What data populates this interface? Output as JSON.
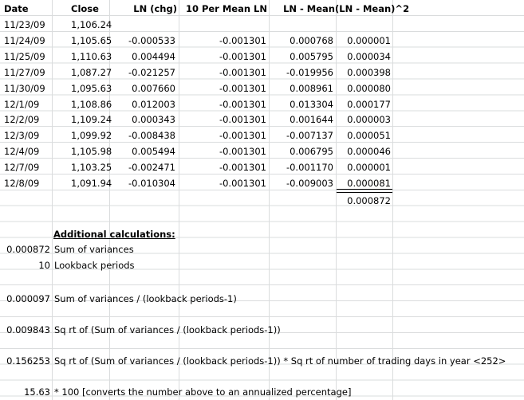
{
  "headers": [
    "Date",
    "Close",
    "LN (chg)",
    "10 Per Mean LN",
    "LN - Mean",
    "(LN - Mean)^2"
  ],
  "rows": [
    [
      "11/23/09",
      "1,106.24",
      "",
      "",
      "",
      ""
    ],
    [
      "11/24/09",
      "1,105.65",
      "-0.000533",
      "-0.001301",
      "0.000768",
      "0.000001"
    ],
    [
      "11/25/09",
      "1,110.63",
      "0.004494",
      "-0.001301",
      "0.005795",
      "0.000034"
    ],
    [
      "11/27/09",
      "1,087.27",
      "-0.021257",
      "-0.001301",
      "-0.019956",
      "0.000398"
    ],
    [
      "11/30/09",
      "1,095.63",
      "0.007660",
      "-0.001301",
      "0.008961",
      "0.000080"
    ],
    [
      "12/1/09",
      "1,108.86",
      "0.012003",
      "-0.001301",
      "0.013304",
      "0.000177"
    ],
    [
      "12/2/09",
      "1,109.24",
      "0.000343",
      "-0.001301",
      "0.001644",
      "0.000003"
    ],
    [
      "12/3/09",
      "1,099.92",
      "-0.008438",
      "-0.001301",
      "-0.007137",
      "0.000051"
    ],
    [
      "12/4/09",
      "1,105.98",
      "0.005494",
      "-0.001301",
      "0.006795",
      "0.000046"
    ],
    [
      "12/7/09",
      "1,103.25",
      "-0.002471",
      "-0.001301",
      "-0.001170",
      "0.000001"
    ],
    [
      "12/8/09",
      "1,091.94",
      "-0.010304",
      "-0.001301",
      "-0.009003",
      "0.000081"
    ]
  ],
  "sum_value": "0.000872",
  "additional": {
    "heading": "Additional calculations:",
    "sum_variances_value": "0.000872",
    "sum_variances_label": "Sum of variances",
    "lookback_value": "10",
    "lookback_label": "Lookback periods",
    "variance_value": "0.000097",
    "variance_label": "Sum of variances / (lookback periods-1)",
    "sqrt_value": "0.009843",
    "sqrt_label": "Sq rt of (Sum of variances / (lookback periods-1))",
    "annual_value": "0.156253",
    "annual_label": "Sq rt of (Sum of variances / (lookback periods-1)) * Sq rt of number of trading days in year <252>",
    "pct_value": "15.63",
    "pct_label": "* 100 [converts the number above to an annualized percentage]"
  }
}
